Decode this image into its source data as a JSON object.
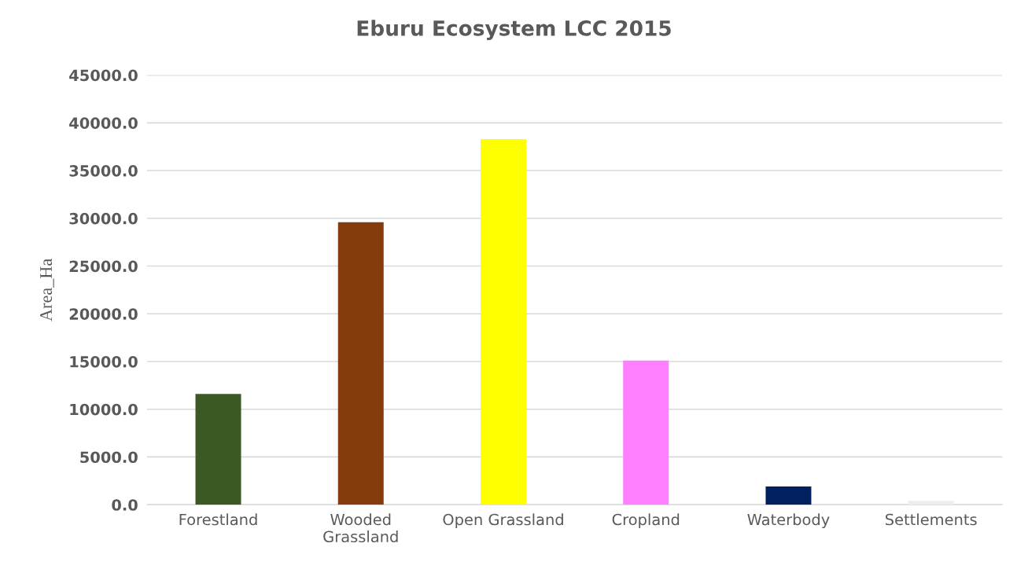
{
  "chart_data": {
    "type": "bar",
    "title": "Eburu Ecosystem LCC 2015",
    "ylabel": "Area_Ha",
    "categories": [
      "Forestland",
      "Wooded\nGrassland",
      "Open Grassland",
      "Cropland",
      "Waterbody",
      "Settlements"
    ],
    "values": [
      11600,
      29600,
      38300,
      15100,
      1900,
      400
    ],
    "colors": [
      "#3b5a23",
      "#843c0c",
      "#ffff00",
      "#ff80ff",
      "#002060",
      "#ededed"
    ],
    "ylim": [
      0,
      45000
    ],
    "yticks": [
      {
        "value": 0,
        "label": "0.0"
      },
      {
        "value": 5000,
        "label": "5000.0"
      },
      {
        "value": 10000,
        "label": "10000.0"
      },
      {
        "value": 15000,
        "label": "15000.0"
      },
      {
        "value": 20000,
        "label": "20000.0"
      },
      {
        "value": 25000,
        "label": "25000.0"
      },
      {
        "value": 30000,
        "label": "30000.0"
      },
      {
        "value": 35000,
        "label": "35000.0"
      },
      {
        "value": 40000,
        "label": "40000.0"
      },
      {
        "value": 45000,
        "label": "45000.0"
      }
    ],
    "grid": "y",
    "legend": false
  }
}
